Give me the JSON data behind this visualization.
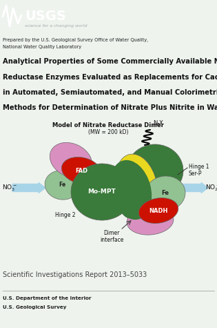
{
  "bg_top": "#1c1c17",
  "bg_main": "#eef3ee",
  "bg_diagram": "#f0f5f0",
  "usgs_text": "USGS",
  "usgs_tagline": "science for a changing world",
  "prepared_line1": "Prepared by the U.S. Geological Survey Office of Water Quality,",
  "prepared_line2": "National Water Quality Laboratory",
  "title_line1": "Analytical Properties of Some Commercially Available Nitrate",
  "title_line2": "Reductase Enzymes Evaluated as Replacements for Cadmium",
  "title_line3": "in Automated, Semiautomated, and Manual Colorimetric",
  "title_line4": "Methods for Determination of Nitrate Plus Nitrite in Water",
  "diagram_title": "Model of Nitrate Reductase Dimer",
  "diagram_subtitle": "(MW = 200 kD)",
  "sir_text": "Scientific Investigations Report 2013–5033",
  "footer_line1": "U.S. Department of the Interior",
  "footer_line2": "U.S. Geological Survey",
  "color_dark_green": "#3a7a3a",
  "color_med_green": "#4e8f4e",
  "color_light_green": "#92c292",
  "color_yellow": "#e8d820",
  "color_red": "#cc1100",
  "color_pink": "#d990c0",
  "color_arrow": "#a8d4e8",
  "color_border": "#666666"
}
